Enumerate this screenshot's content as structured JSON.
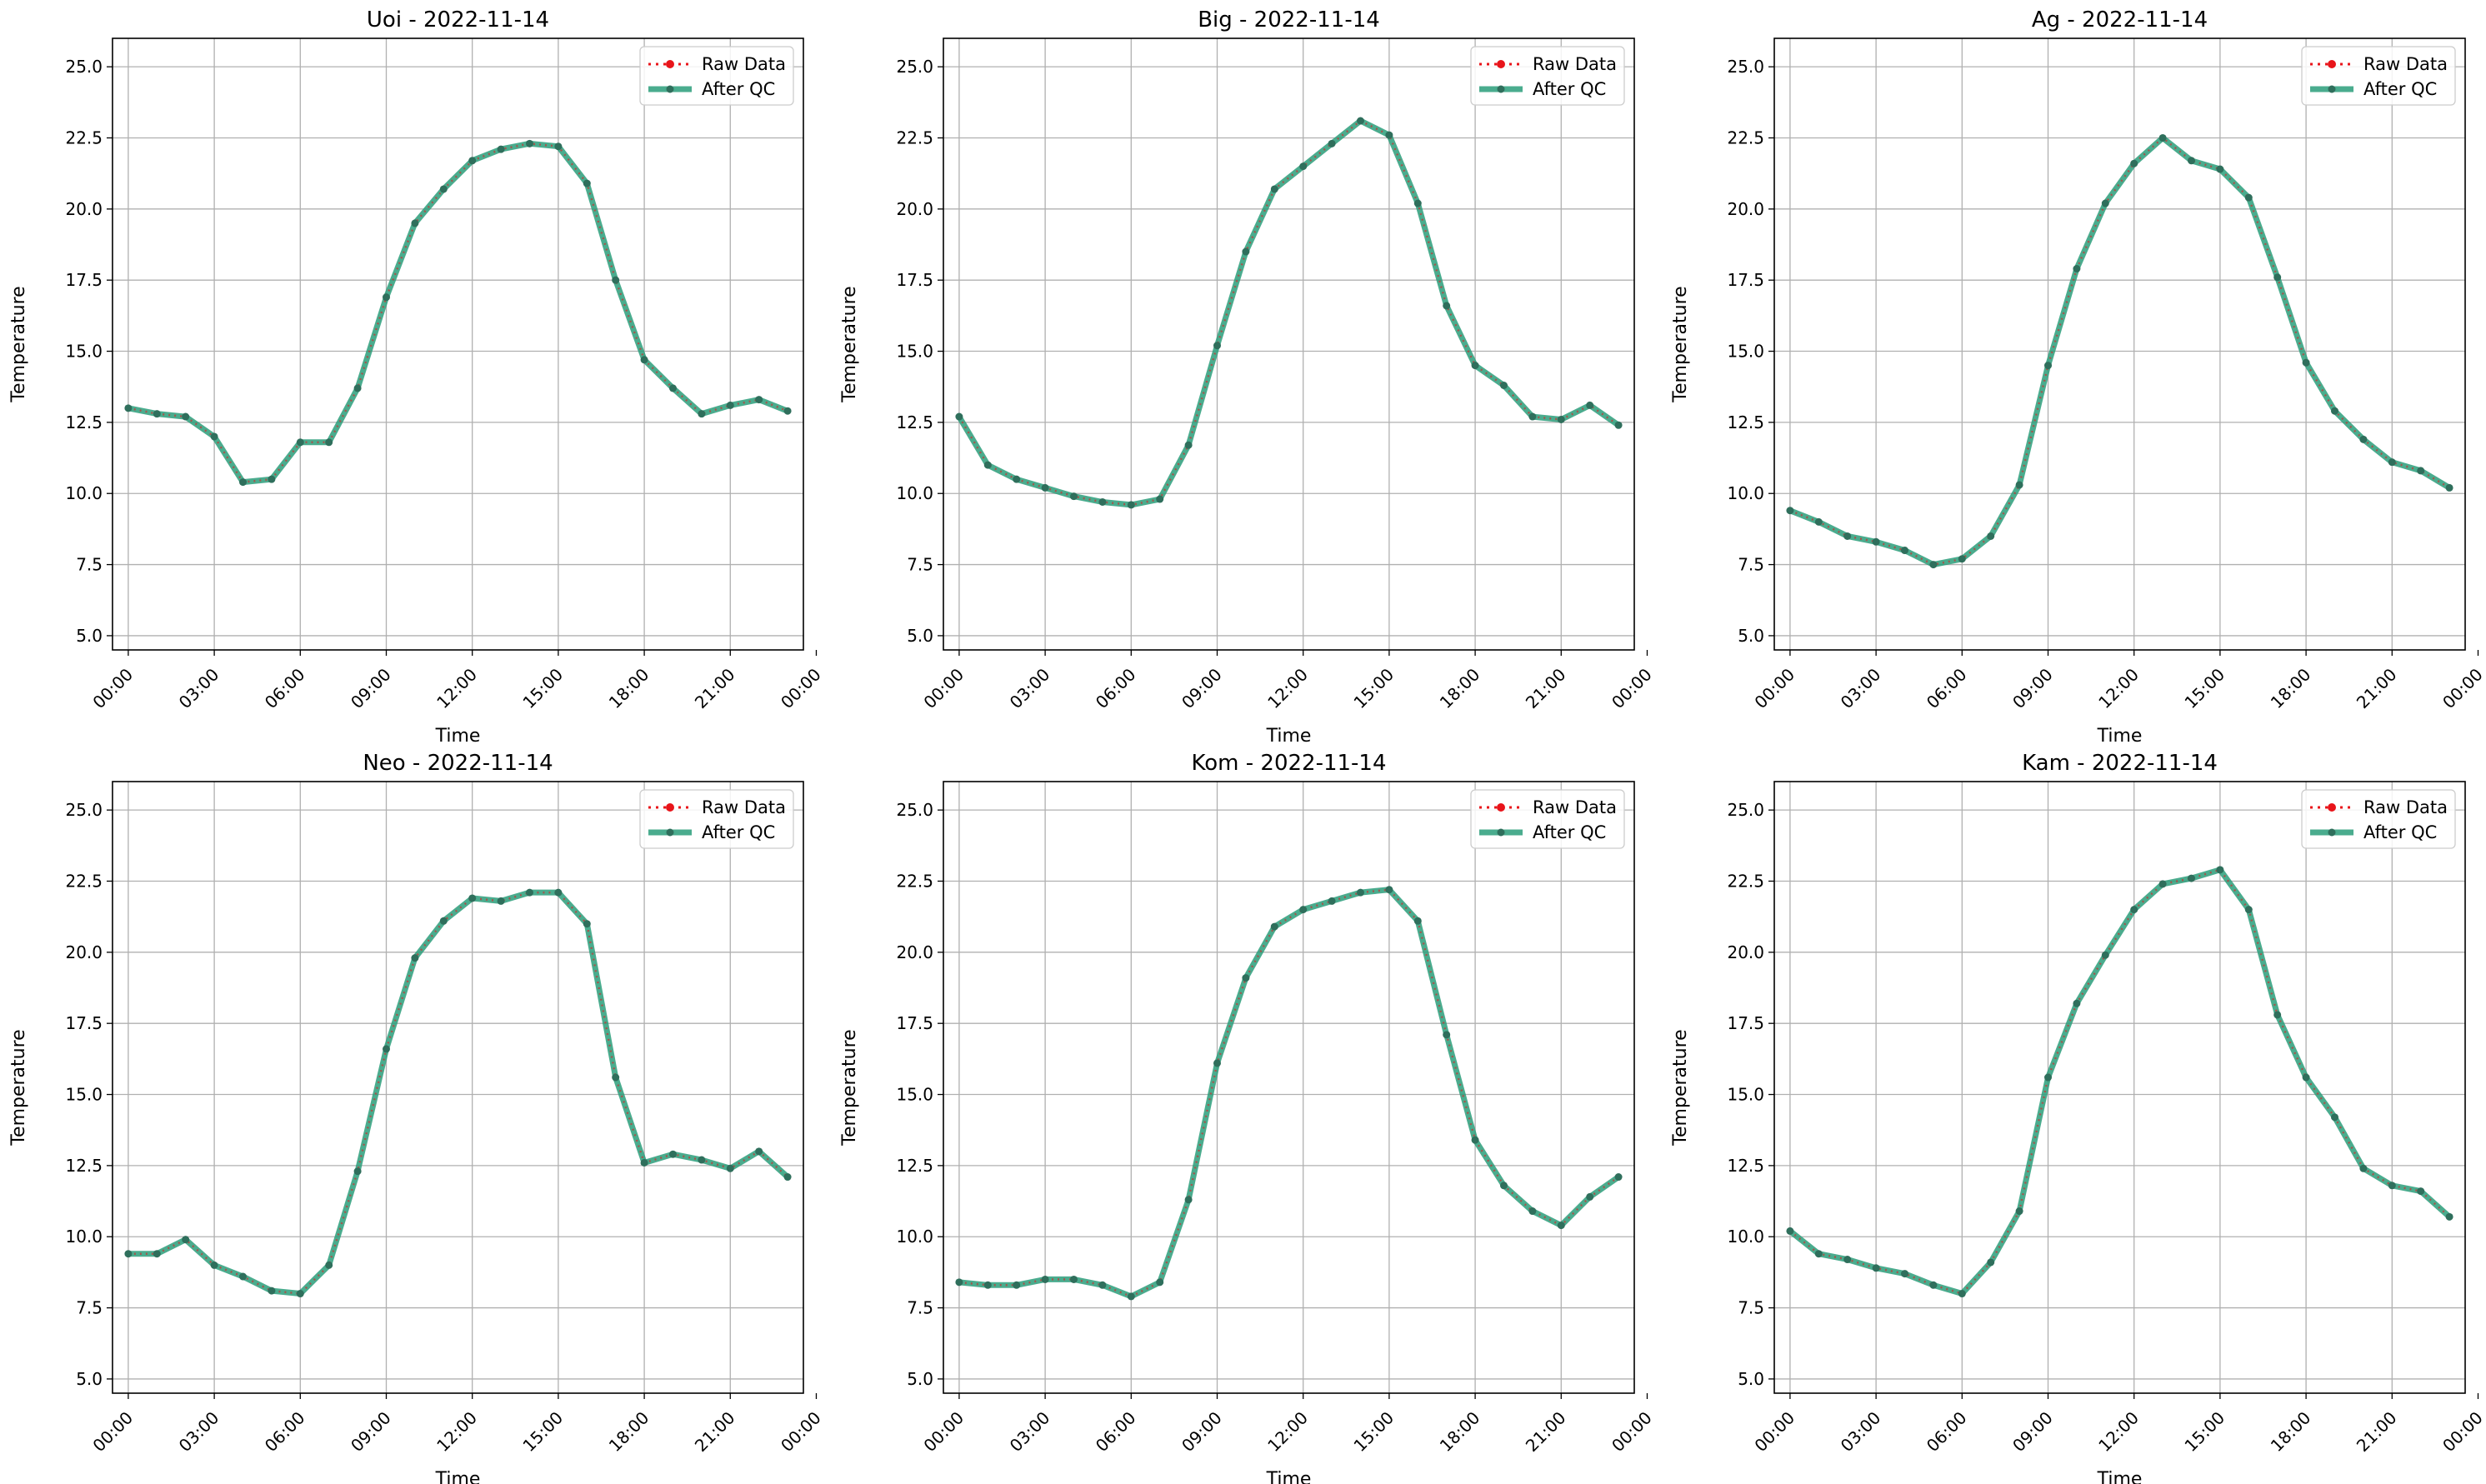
{
  "figure": {
    "colors": {
      "raw": "#e8141a",
      "qc": "#2a9d7a",
      "grid": "#b0b0b0"
    },
    "legend": {
      "placement": "upper-right",
      "entries": [
        "Raw Data",
        "After QC"
      ]
    }
  },
  "chart_data": [
    {
      "type": "line",
      "title": "Uoi - 2022-11-14",
      "xlabel": "Time",
      "ylabel": "Temperature",
      "ylim": [
        4.5,
        26.0
      ],
      "yticks": [
        "5.0",
        "7.5",
        "10.0",
        "12.5",
        "15.0",
        "17.5",
        "20.0",
        "22.5",
        "25.0"
      ],
      "xticks": [
        "00:00",
        "03:00",
        "06:00",
        "09:00",
        "12:00",
        "15:00",
        "18:00",
        "21:00",
        "00:00"
      ],
      "grid": true,
      "legend": "upper-right",
      "x_hours": [
        0,
        1,
        2,
        3,
        4,
        5,
        6,
        7,
        8,
        9,
        10,
        11,
        12,
        13,
        14,
        15,
        16,
        17,
        18,
        19,
        20,
        21,
        22,
        23
      ],
      "series": [
        {
          "name": "Raw Data",
          "values": [
            13.0,
            12.8,
            12.7,
            12.0,
            10.4,
            10.5,
            11.8,
            11.8,
            13.7,
            16.9,
            19.5,
            20.7,
            21.7,
            22.1,
            22.3,
            22.2,
            20.9,
            17.5,
            14.7,
            13.7,
            12.8,
            13.1,
            13.3,
            12.9
          ]
        },
        {
          "name": "After QC",
          "values": [
            13.0,
            12.8,
            12.7,
            12.0,
            10.4,
            10.5,
            11.8,
            11.8,
            13.7,
            16.9,
            19.5,
            20.7,
            21.7,
            22.1,
            22.3,
            22.2,
            20.9,
            17.5,
            14.7,
            13.7,
            12.8,
            13.1,
            13.3,
            12.9
          ]
        }
      ]
    },
    {
      "type": "line",
      "title": "Big - 2022-11-14",
      "xlabel": "Time",
      "ylabel": "Temperature",
      "ylim": [
        4.5,
        26.0
      ],
      "yticks": [
        "5.0",
        "7.5",
        "10.0",
        "12.5",
        "15.0",
        "17.5",
        "20.0",
        "22.5",
        "25.0"
      ],
      "xticks": [
        "00:00",
        "03:00",
        "06:00",
        "09:00",
        "12:00",
        "15:00",
        "18:00",
        "21:00",
        "00:00"
      ],
      "grid": true,
      "legend": "upper-right",
      "x_hours": [
        0,
        1,
        2,
        3,
        4,
        5,
        6,
        7,
        8,
        9,
        10,
        11,
        12,
        13,
        14,
        15,
        16,
        17,
        18,
        19,
        20,
        21,
        22,
        23
      ],
      "series": [
        {
          "name": "Raw Data",
          "values": [
            12.7,
            11.0,
            10.5,
            10.2,
            9.9,
            9.7,
            9.6,
            9.8,
            11.7,
            15.2,
            18.5,
            20.7,
            21.5,
            22.3,
            23.1,
            22.6,
            20.2,
            16.6,
            14.5,
            13.8,
            12.7,
            12.6,
            13.1,
            12.4
          ]
        },
        {
          "name": "After QC",
          "values": [
            12.7,
            11.0,
            10.5,
            10.2,
            9.9,
            9.7,
            9.6,
            9.8,
            11.7,
            15.2,
            18.5,
            20.7,
            21.5,
            22.3,
            23.1,
            22.6,
            20.2,
            16.6,
            14.5,
            13.8,
            12.7,
            12.6,
            13.1,
            12.4
          ]
        }
      ]
    },
    {
      "type": "line",
      "title": "Ag - 2022-11-14",
      "xlabel": "Time",
      "ylabel": "Temperature",
      "ylim": [
        4.5,
        26.0
      ],
      "yticks": [
        "5.0",
        "7.5",
        "10.0",
        "12.5",
        "15.0",
        "17.5",
        "20.0",
        "22.5",
        "25.0"
      ],
      "xticks": [
        "00:00",
        "03:00",
        "06:00",
        "09:00",
        "12:00",
        "15:00",
        "18:00",
        "21:00",
        "00:00"
      ],
      "grid": true,
      "legend": "upper-right",
      "x_hours": [
        0,
        1,
        2,
        3,
        4,
        5,
        6,
        7,
        8,
        9,
        10,
        11,
        12,
        13,
        14,
        15,
        16,
        17,
        18,
        19,
        20,
        21,
        22,
        23
      ],
      "series": [
        {
          "name": "Raw Data",
          "values": [
            9.4,
            9.0,
            8.5,
            8.3,
            8.0,
            7.5,
            7.7,
            8.5,
            10.3,
            14.5,
            17.9,
            20.2,
            21.6,
            22.5,
            21.7,
            21.4,
            20.4,
            17.6,
            14.6,
            12.9,
            11.9,
            11.1,
            10.8,
            10.2
          ]
        },
        {
          "name": "After QC",
          "values": [
            9.4,
            9.0,
            8.5,
            8.3,
            8.0,
            7.5,
            7.7,
            8.5,
            10.3,
            14.5,
            17.9,
            20.2,
            21.6,
            22.5,
            21.7,
            21.4,
            20.4,
            17.6,
            14.6,
            12.9,
            11.9,
            11.1,
            10.8,
            10.2
          ]
        }
      ]
    },
    {
      "type": "line",
      "title": "Neo - 2022-11-14",
      "xlabel": "Time",
      "ylabel": "Temperature",
      "ylim": [
        4.5,
        26.0
      ],
      "yticks": [
        "5.0",
        "7.5",
        "10.0",
        "12.5",
        "15.0",
        "17.5",
        "20.0",
        "22.5",
        "25.0"
      ],
      "xticks": [
        "00:00",
        "03:00",
        "06:00",
        "09:00",
        "12:00",
        "15:00",
        "18:00",
        "21:00",
        "00:00"
      ],
      "grid": true,
      "legend": "upper-right",
      "x_hours": [
        0,
        1,
        2,
        3,
        4,
        5,
        6,
        7,
        8,
        9,
        10,
        11,
        12,
        13,
        14,
        15,
        16,
        17,
        18,
        19,
        20,
        21,
        22,
        23
      ],
      "series": [
        {
          "name": "Raw Data",
          "values": [
            9.4,
            9.4,
            9.9,
            9.0,
            8.6,
            8.1,
            8.0,
            9.0,
            12.3,
            16.6,
            19.8,
            21.1,
            21.9,
            21.8,
            22.1,
            22.1,
            21.0,
            15.6,
            12.6,
            12.9,
            12.7,
            12.4,
            13.0,
            12.1
          ]
        },
        {
          "name": "After QC",
          "values": [
            9.4,
            9.4,
            9.9,
            9.0,
            8.6,
            8.1,
            8.0,
            9.0,
            12.3,
            16.6,
            19.8,
            21.1,
            21.9,
            21.8,
            22.1,
            22.1,
            21.0,
            15.6,
            12.6,
            12.9,
            12.7,
            12.4,
            13.0,
            12.1
          ]
        }
      ]
    },
    {
      "type": "line",
      "title": "Kom - 2022-11-14",
      "xlabel": "Time",
      "ylabel": "Temperature",
      "ylim": [
        4.5,
        26.0
      ],
      "yticks": [
        "5.0",
        "7.5",
        "10.0",
        "12.5",
        "15.0",
        "17.5",
        "20.0",
        "22.5",
        "25.0"
      ],
      "xticks": [
        "00:00",
        "03:00",
        "06:00",
        "09:00",
        "12:00",
        "15:00",
        "18:00",
        "21:00",
        "00:00"
      ],
      "grid": true,
      "legend": "upper-right",
      "x_hours": [
        0,
        1,
        2,
        3,
        4,
        5,
        6,
        7,
        8,
        9,
        10,
        11,
        12,
        13,
        14,
        15,
        16,
        17,
        18,
        19,
        20,
        21,
        22,
        23
      ],
      "series": [
        {
          "name": "Raw Data",
          "values": [
            8.4,
            8.3,
            8.3,
            8.5,
            8.5,
            8.3,
            7.9,
            8.4,
            11.3,
            16.1,
            19.1,
            20.9,
            21.5,
            21.8,
            22.1,
            22.2,
            21.1,
            17.1,
            13.4,
            11.8,
            10.9,
            10.4,
            11.4,
            12.1
          ]
        },
        {
          "name": "After QC",
          "values": [
            8.4,
            8.3,
            8.3,
            8.5,
            8.5,
            8.3,
            7.9,
            8.4,
            11.3,
            16.1,
            19.1,
            20.9,
            21.5,
            21.8,
            22.1,
            22.2,
            21.1,
            17.1,
            13.4,
            11.8,
            10.9,
            10.4,
            11.4,
            12.1
          ]
        }
      ]
    },
    {
      "type": "line",
      "title": "Kam - 2022-11-14",
      "xlabel": "Time",
      "ylabel": "Temperature",
      "ylim": [
        4.5,
        26.0
      ],
      "yticks": [
        "5.0",
        "7.5",
        "10.0",
        "12.5",
        "15.0",
        "17.5",
        "20.0",
        "22.5",
        "25.0"
      ],
      "xticks": [
        "00:00",
        "03:00",
        "06:00",
        "09:00",
        "12:00",
        "15:00",
        "18:00",
        "21:00",
        "00:00"
      ],
      "grid": true,
      "legend": "upper-right",
      "x_hours": [
        0,
        1,
        2,
        3,
        4,
        5,
        6,
        7,
        8,
        9,
        10,
        11,
        12,
        13,
        14,
        15,
        16,
        17,
        18,
        19,
        20,
        21,
        22,
        23
      ],
      "series": [
        {
          "name": "Raw Data",
          "values": [
            10.2,
            9.4,
            9.2,
            8.9,
            8.7,
            8.3,
            8.0,
            9.1,
            10.9,
            15.6,
            18.2,
            19.9,
            21.5,
            22.4,
            22.6,
            22.9,
            21.5,
            17.8,
            15.6,
            14.2,
            12.4,
            11.8,
            11.6,
            10.7
          ]
        },
        {
          "name": "After QC",
          "values": [
            10.2,
            9.4,
            9.2,
            8.9,
            8.7,
            8.3,
            8.0,
            9.1,
            10.9,
            15.6,
            18.2,
            19.9,
            21.5,
            22.4,
            22.6,
            22.9,
            21.5,
            17.8,
            15.6,
            14.2,
            12.4,
            11.8,
            11.6,
            10.7
          ]
        }
      ]
    }
  ]
}
